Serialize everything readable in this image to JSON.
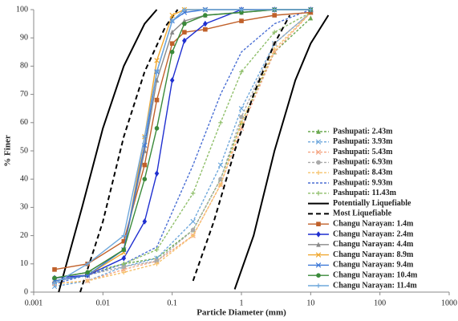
{
  "chart_data": {
    "type": "line",
    "xlabel": "Particle Diameter (mm)",
    "ylabel": "% Finer",
    "xscale": "log",
    "xlim": [
      0.001,
      1000
    ],
    "xticks": [
      0.001,
      0.01,
      0.1,
      1,
      10,
      100,
      1000
    ],
    "ylim": [
      0,
      100
    ],
    "yticks": [
      0,
      10,
      20,
      30,
      40,
      50,
      60,
      70,
      80,
      90,
      100
    ],
    "grid": false,
    "legend": "lower right",
    "series": [
      {
        "name": "Pashupati: 2.43m",
        "color": "#6aa84f",
        "style": "dashed",
        "marker": "triangle",
        "x": [
          0.002,
          0.006,
          0.02,
          0.06,
          0.2,
          0.5,
          1,
          3,
          10
        ],
        "values": [
          4,
          6,
          10,
          12,
          22,
          40,
          60,
          85,
          97
        ]
      },
      {
        "name": "Pashupati: 3.93m",
        "color": "#6fa8dc",
        "style": "dashed",
        "marker": "x",
        "x": [
          0.002,
          0.006,
          0.02,
          0.06,
          0.2,
          0.5,
          1,
          3,
          10
        ],
        "values": [
          2,
          4,
          9,
          12,
          25,
          45,
          65,
          88,
          99
        ]
      },
      {
        "name": "Pashupati: 5.43m",
        "color": "#f4a582",
        "style": "dashed",
        "marker": "x",
        "x": [
          0.002,
          0.006,
          0.02,
          0.06,
          0.2,
          0.5,
          1,
          3,
          10
        ],
        "values": [
          3,
          4,
          8,
          11,
          20,
          38,
          58,
          85,
          99
        ]
      },
      {
        "name": "Pashupati: 6.93m",
        "color": "#aaaaaa",
        "style": "dashed",
        "marker": "circle",
        "x": [
          0.002,
          0.006,
          0.02,
          0.06,
          0.2,
          0.5,
          1,
          3,
          10
        ],
        "values": [
          5,
          6,
          9,
          11,
          22,
          40,
          62,
          88,
          99
        ]
      },
      {
        "name": "Pashupati: 8.43m",
        "color": "#f6c26b",
        "style": "dashed",
        "marker": "plus",
        "x": [
          0.002,
          0.006,
          0.02,
          0.06,
          0.2,
          0.5,
          1,
          3,
          10
        ],
        "values": [
          3,
          4,
          7,
          10,
          20,
          38,
          60,
          86,
          99
        ]
      },
      {
        "name": "Pashupati: 9.93m",
        "color": "#4a6fd4",
        "style": "dashed",
        "marker": "none",
        "x": [
          0.002,
          0.006,
          0.02,
          0.06,
          0.2,
          0.5,
          1,
          3,
          10
        ],
        "values": [
          3,
          6,
          10,
          16,
          45,
          70,
          85,
          95,
          100
        ]
      },
      {
        "name": "Pashupati: 11.43m",
        "color": "#8fbf6a",
        "style": "dashed",
        "marker": "plus",
        "x": [
          0.002,
          0.006,
          0.02,
          0.06,
          0.2,
          0.5,
          1,
          3,
          10
        ],
        "values": [
          5,
          7,
          10,
          15,
          35,
          60,
          78,
          92,
          99
        ]
      },
      {
        "name": "Potentially Liquefiable",
        "color": "#000000",
        "style": "solid",
        "marker": "none",
        "x": [
          0.0023,
          0.005,
          0.01,
          0.02,
          0.04,
          0.06,
          null,
          0.8,
          1.5,
          3,
          6,
          10,
          18
        ],
        "values": [
          0,
          30,
          58,
          80,
          95,
          100,
          null,
          1,
          20,
          50,
          75,
          88,
          98
        ]
      },
      {
        "name": "Most Liquefiable",
        "color": "#000000",
        "style": "dashed",
        "marker": "none",
        "x": [
          0.0047,
          0.01,
          0.02,
          0.04,
          0.08,
          0.12,
          null,
          0.2,
          0.4,
          0.8,
          1.5,
          3,
          5
        ],
        "values": [
          0,
          25,
          55,
          78,
          94,
          100,
          null,
          4,
          25,
          50,
          70,
          88,
          98
        ]
      },
      {
        "name": "Changu Narayan: 1.4m",
        "color": "#c0602a",
        "style": "solid",
        "marker": "square",
        "x": [
          0.002,
          0.006,
          0.02,
          0.04,
          0.06,
          0.1,
          0.15,
          0.3,
          1,
          3,
          10
        ],
        "values": [
          8,
          10,
          18,
          45,
          68,
          88,
          92,
          93,
          96,
          98,
          99
        ]
      },
      {
        "name": "Changu Narayan: 2.4m",
        "color": "#1f2fd0",
        "style": "solid",
        "marker": "diamond",
        "x": [
          0.002,
          0.006,
          0.02,
          0.04,
          0.06,
          0.1,
          0.15,
          0.3,
          1,
          3,
          10
        ],
        "values": [
          5,
          6,
          12,
          25,
          42,
          75,
          89,
          95,
          100,
          100,
          100
        ]
      },
      {
        "name": "Changu Narayan: 4.4m",
        "color": "#8a8a8a",
        "style": "solid",
        "marker": "triangle",
        "x": [
          0.002,
          0.006,
          0.02,
          0.04,
          0.06,
          0.1,
          0.15,
          0.3,
          1,
          3,
          10
        ],
        "values": [
          5,
          7,
          15,
          50,
          75,
          92,
          96,
          98,
          99,
          100,
          100
        ]
      },
      {
        "name": "Changu Narayan: 8.9m",
        "color": "#f0a830",
        "style": "solid",
        "marker": "x",
        "x": [
          0.002,
          0.006,
          0.02,
          0.04,
          0.06,
          0.1,
          0.15,
          0.3,
          1,
          3,
          10
        ],
        "values": [
          4,
          6,
          14,
          55,
          82,
          98,
          100,
          100,
          100,
          100,
          100
        ]
      },
      {
        "name": "Changu Narayan: 9.4m",
        "color": "#3c78d8",
        "style": "solid",
        "marker": "x",
        "x": [
          0.002,
          0.006,
          0.02,
          0.04,
          0.06,
          0.1,
          0.15,
          0.3,
          1,
          3,
          10
        ],
        "values": [
          4,
          6,
          15,
          52,
          78,
          96,
          99,
          100,
          100,
          100,
          100
        ]
      },
      {
        "name": "Changu Narayan: 10.4m",
        "color": "#3a8a3a",
        "style": "solid",
        "marker": "circle",
        "x": [
          0.002,
          0.006,
          0.02,
          0.04,
          0.06,
          0.1,
          0.15,
          0.3,
          1,
          3,
          10
        ],
        "values": [
          5,
          7,
          15,
          40,
          58,
          85,
          95,
          98,
          99,
          100,
          100
        ]
      },
      {
        "name": "Changu Narayan: 11.4m",
        "color": "#6fa8dc",
        "style": "solid",
        "marker": "plus",
        "x": [
          0.002,
          0.006,
          0.02,
          0.04,
          0.06,
          0.1,
          0.15,
          0.3,
          1,
          3,
          10
        ],
        "values": [
          3,
          10,
          20,
          55,
          78,
          96,
          100,
          100,
          100,
          100,
          100
        ]
      }
    ]
  }
}
